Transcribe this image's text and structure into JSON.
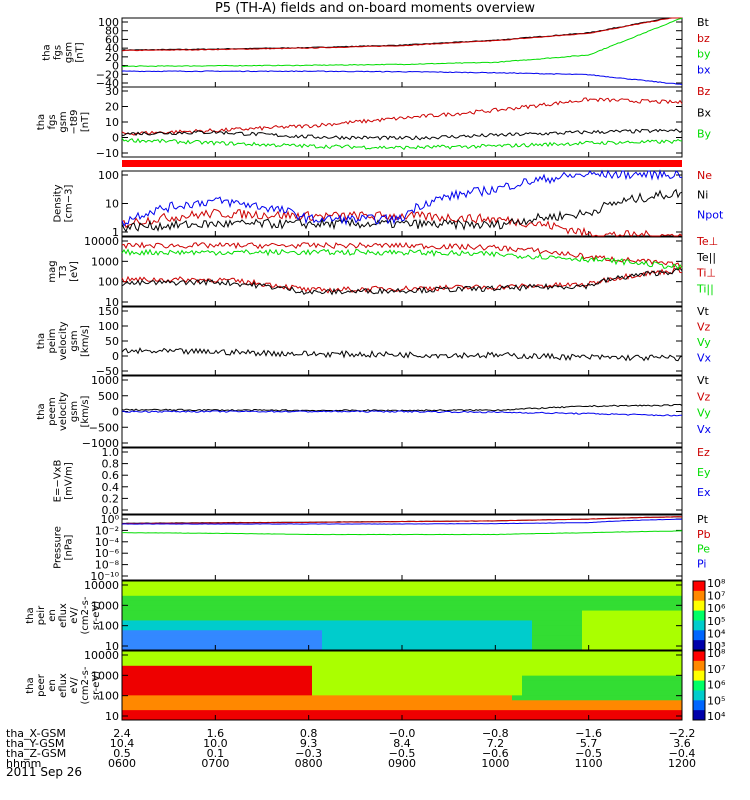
{
  "title": "P5 (TH-A) fields and on-board moments overview",
  "date": "2011 Sep 26",
  "colors": {
    "black": "#000000",
    "red": "#cc0000",
    "green": "#00dd00",
    "blue": "#0000ee",
    "red_bar": "#ff0000"
  },
  "panels": [
    {
      "id": "fgs-gsm",
      "ylabel": [
        "tha",
        "fgs",
        "gsm",
        "[nT]"
      ],
      "yticks": [
        "100",
        "80",
        "60",
        "40",
        "20",
        "0",
        "−20",
        "−40"
      ],
      "legend": [
        {
          "label": "Bt",
          "color": "black"
        },
        {
          "label": "bz",
          "color": "red"
        },
        {
          "label": "by",
          "color": "green"
        },
        {
          "label": "bx",
          "color": "blue"
        }
      ]
    },
    {
      "id": "fgs-gsm-dip",
      "ylabel": [
        "tha",
        "fgs",
        "gsm",
        "−t89",
        "[nT]"
      ],
      "yticks": [
        "30",
        "20",
        "10",
        "0",
        "−10"
      ],
      "legend": [
        {
          "label": "Bz",
          "color": "red"
        },
        {
          "label": "Bx",
          "color": "black"
        },
        {
          "label": "By",
          "color": "green"
        }
      ]
    },
    {
      "id": "density",
      "ylabel": [
        "Density",
        "[cm−3]"
      ],
      "yticks": [
        "100",
        "10",
        "1"
      ],
      "legend": [
        {
          "label": "Ne",
          "color": "red"
        },
        {
          "label": "Ni",
          "color": "black"
        },
        {
          "label": "Npot",
          "color": "blue"
        }
      ]
    },
    {
      "id": "temperature",
      "ylabel": [
        "mag",
        "T3",
        "[eV]"
      ],
      "yticks": [
        "10000",
        "1000",
        "100",
        "10"
      ],
      "legend": [
        {
          "label": "Te⊥",
          "color": "red"
        },
        {
          "label": "Te||",
          "color": "black"
        },
        {
          "label": "Ti⊥",
          "color": "red"
        },
        {
          "label": "Ti||",
          "color": "green"
        }
      ]
    },
    {
      "id": "peim-velocity",
      "ylabel": [
        "tha",
        "peim",
        "velocity",
        "gsm",
        "[km/s]"
      ],
      "yticks": [
        "150",
        "100",
        "50",
        "0",
        "−50"
      ],
      "legend": [
        {
          "label": "Vt",
          "color": "black"
        },
        {
          "label": "Vz",
          "color": "red"
        },
        {
          "label": "Vy",
          "color": "green"
        },
        {
          "label": "Vx",
          "color": "blue"
        }
      ]
    },
    {
      "id": "peem-velocity",
      "ylabel": [
        "tha",
        "peem",
        "velocity",
        "gsm",
        "[km/s]"
      ],
      "yticks": [
        "1000",
        "500",
        "0",
        "−500",
        "−1000"
      ],
      "legend": [
        {
          "label": "Vt",
          "color": "black"
        },
        {
          "label": "Vz",
          "color": "red"
        },
        {
          "label": "Vy",
          "color": "green"
        },
        {
          "label": "Vx",
          "color": "blue"
        }
      ]
    },
    {
      "id": "efield",
      "ylabel": [
        "E=−VxB",
        "[mV/m]"
      ],
      "yticks": [
        "1.0",
        "0.8",
        "0.6",
        "0.4",
        "0.2",
        "0.0"
      ],
      "legend": [
        {
          "label": "Ez",
          "color": "red"
        },
        {
          "label": "Ey",
          "color": "green"
        },
        {
          "label": "Ex",
          "color": "blue"
        }
      ]
    },
    {
      "id": "pressure",
      "ylabel": [
        "Pressure",
        "[nPa]"
      ],
      "yticks": [
        "10⁰",
        "10⁻²",
        "10⁻⁴",
        "10⁻⁶",
        "10⁻⁸",
        "10⁻¹⁰"
      ],
      "legend": [
        {
          "label": "Pt",
          "color": "black"
        },
        {
          "label": "Pb",
          "color": "red"
        },
        {
          "label": "Pe",
          "color": "green"
        },
        {
          "label": "Pi",
          "color": "blue"
        }
      ]
    },
    {
      "id": "peir-spec",
      "ylabel": [
        "tha",
        "peir",
        "en",
        "eflux",
        "eV/",
        "(cm2-s-",
        "sr-eV)"
      ],
      "yticks": [
        "10000",
        "1000",
        "100",
        "10"
      ],
      "cbar": [
        "10⁸",
        "10⁷",
        "10⁶",
        "10⁵",
        "10⁴",
        "10³"
      ]
    },
    {
      "id": "peer-spec",
      "ylabel": [
        "tha",
        "peer",
        "en",
        "eflux",
        "eV/",
        "(cm2-s-",
        "sr-eV)"
      ],
      "yticks": [
        "10000",
        "1000",
        "100",
        "10"
      ],
      "cbar": [
        "10⁸",
        "10⁷",
        "10⁶",
        "10⁵",
        "10⁴"
      ]
    }
  ],
  "ephemeris": {
    "labels": [
      "tha_X-GSM",
      "tha_Y-GSM",
      "tha_Z-GSM",
      "hhmm"
    ],
    "rows": [
      [
        "2.4",
        "1.6",
        "0.8",
        "−0.0",
        "−0.8",
        "−1.6",
        "−2.2"
      ],
      [
        "10.4",
        "10.0",
        "9.3",
        "8.4",
        "7.2",
        "5.7",
        "3.6"
      ],
      [
        "0.5",
        "0.1",
        "−0.3",
        "−0.5",
        "−0.6",
        "−0.5",
        "−0.4"
      ],
      [
        "0600",
        "0700",
        "0800",
        "0900",
        "1000",
        "1100",
        "1200"
      ]
    ]
  },
  "chart_data": {
    "type": "line",
    "title": "P5 (TH-A) fields and on-board moments overview",
    "x": [
      "0600",
      "0700",
      "0800",
      "0900",
      "1000",
      "1100",
      "1200"
    ],
    "xlabel": "hhmm",
    "series": [
      {
        "panel": "fgs-gsm",
        "name": "Bt",
        "values": [
          35,
          37,
          40,
          45,
          55,
          70,
          105
        ],
        "ylim": [
          -40,
          100
        ]
      },
      {
        "panel": "fgs-gsm",
        "name": "bz",
        "values": [
          34,
          36,
          39,
          44,
          54,
          69,
          104
        ],
        "ylim": [
          -40,
          100
        ]
      },
      {
        "panel": "fgs-gsm",
        "name": "by",
        "values": [
          2,
          3,
          4,
          6,
          10,
          25,
          100
        ],
        "ylim": [
          -40,
          100
        ]
      },
      {
        "panel": "fgs-gsm",
        "name": "bx",
        "values": [
          -8,
          -8,
          -8,
          -9,
          -11,
          -15,
          -35
        ],
        "ylim": [
          -40,
          100
        ]
      },
      {
        "panel": "fgs-gsm-dip",
        "name": "Bz",
        "values": [
          0,
          2,
          5,
          10,
          15,
          22,
          20
        ],
        "ylim": [
          -15,
          30
        ]
      },
      {
        "panel": "fgs-gsm-dip",
        "name": "Bx",
        "values": [
          0,
          1,
          -2,
          -3,
          -1,
          1,
          2
        ],
        "ylim": [
          -15,
          30
        ]
      },
      {
        "panel": "fgs-gsm-dip",
        "name": "By",
        "values": [
          -4,
          -6,
          -8,
          -9,
          -8,
          -6,
          -5
        ],
        "ylim": [
          -15,
          30
        ]
      },
      {
        "panel": "density",
        "name": "Ne",
        "values": [
          2,
          5,
          4,
          4,
          3,
          0.8,
          0.7
        ],
        "ylim": [
          0.7,
          200
        ],
        "log": true
      },
      {
        "panel": "density",
        "name": "Ni",
        "values": [
          1.5,
          2,
          2,
          2,
          1.8,
          5,
          30
        ],
        "ylim": [
          0.7,
          200
        ],
        "log": true
      },
      {
        "panel": "density",
        "name": "Npot",
        "values": [
          2,
          15,
          3,
          3,
          40,
          150,
          150
        ],
        "ylim": [
          0.7,
          200
        ],
        "log": true
      },
      {
        "panel": "temperature",
        "name": "Te⊥",
        "values": [
          150,
          150,
          50,
          60,
          70,
          90,
          400
        ],
        "ylim": [
          10,
          12000
        ],
        "log": true
      },
      {
        "panel": "temperature",
        "name": "Te||",
        "values": [
          100,
          120,
          40,
          50,
          60,
          80,
          380
        ],
        "ylim": [
          10,
          12000
        ],
        "log": true
      },
      {
        "panel": "temperature",
        "name": "Ti⊥",
        "values": [
          5000,
          5000,
          5000,
          5000,
          4000,
          1500,
          600
        ],
        "ylim": [
          10,
          12000
        ],
        "log": true
      },
      {
        "panel": "temperature",
        "name": "Ti||",
        "values": [
          2500,
          2500,
          2500,
          2500,
          2000,
          1200,
          500
        ],
        "ylim": [
          10,
          12000
        ],
        "log": true
      },
      {
        "panel": "peim-velocity",
        "name": "Vt",
        "values": [
          20,
          18,
          12,
          10,
          8,
          2,
          0
        ],
        "ylim": [
          -50,
          150
        ]
      },
      {
        "panel": "peem-velocity",
        "name": "Vt",
        "values": [
          50,
          40,
          30,
          30,
          40,
          150,
          180
        ],
        "ylim": [
          -1000,
          1000
        ]
      },
      {
        "panel": "peem-velocity",
        "name": "Vx",
        "values": [
          0,
          0,
          0,
          0,
          -20,
          -60,
          -120
        ],
        "ylim": [
          -1000,
          1000
        ]
      },
      {
        "panel": "pressure",
        "name": "Pt",
        "values": [
          0.4,
          0.5,
          0.6,
          0.8,
          1,
          2,
          5
        ],
        "ylim": [
          1e-10,
          10
        ],
        "log": true
      },
      {
        "panel": "pressure",
        "name": "Pb",
        "values": [
          0.35,
          0.45,
          0.55,
          0.75,
          1,
          2,
          5
        ],
        "ylim": [
          1e-10,
          10
        ],
        "log": true
      },
      {
        "panel": "pressure",
        "name": "Pe",
        "values": [
          0.01,
          0.008,
          0.005,
          0.005,
          0.005,
          0.01,
          0.02
        ],
        "ylim": [
          1e-10,
          10
        ],
        "log": true
      },
      {
        "panel": "pressure",
        "name": "Pi",
        "values": [
          0.3,
          0.3,
          0.3,
          0.3,
          0.35,
          0.5,
          2
        ],
        "ylim": [
          1e-10,
          10
        ],
        "log": true
      }
    ]
  }
}
